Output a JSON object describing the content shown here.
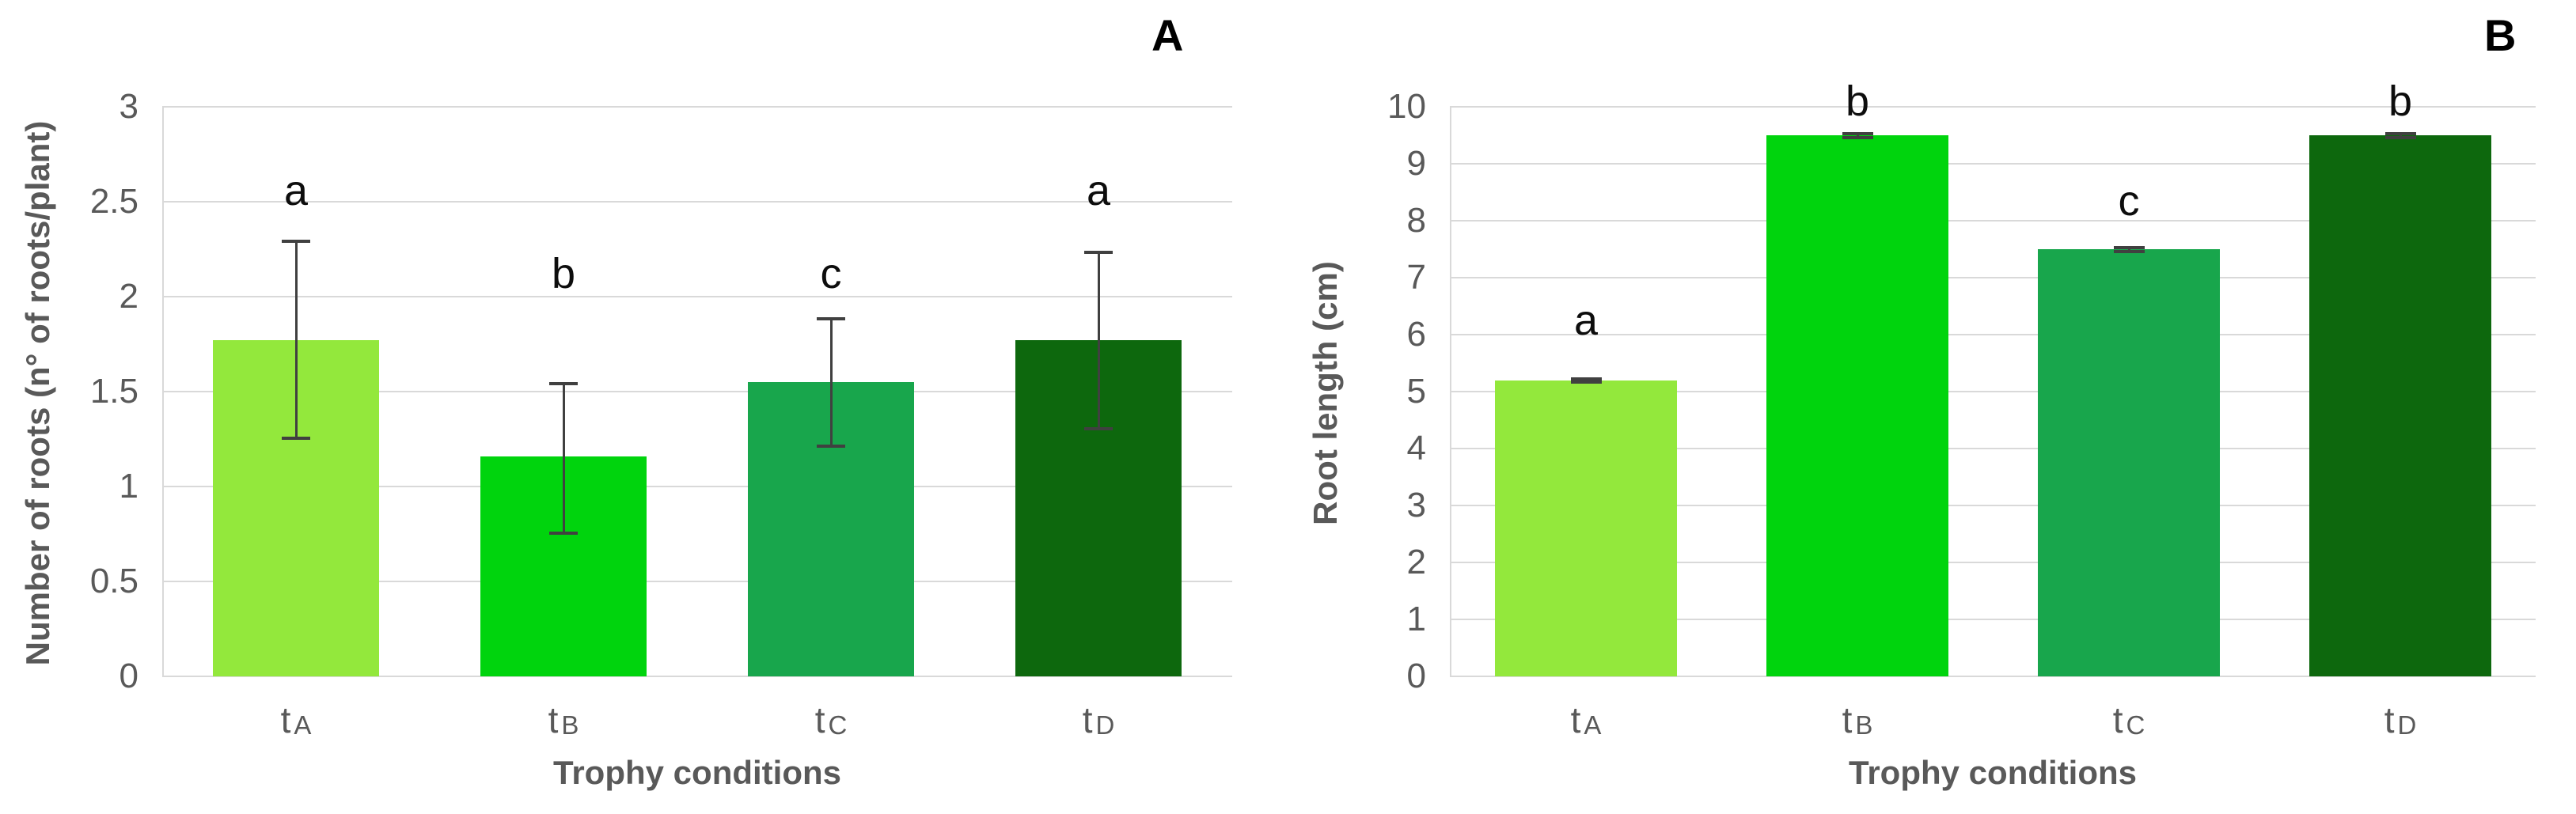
{
  "page": {
    "background": "#ffffff"
  },
  "chart_data": [
    {
      "type": "bar",
      "panel_label": "A",
      "ylabel": "Number of roots (n° of roots/plant)",
      "xlabel": "Trophy conditions",
      "categories": [
        "tA",
        "tB",
        "tC",
        "tD"
      ],
      "values": [
        1.77,
        1.16,
        1.55,
        1.77
      ],
      "error_low": [
        1.25,
        0.75,
        1.21,
        1.3
      ],
      "error_high": [
        2.3,
        1.55,
        1.89,
        2.24
      ],
      "sig_letters": [
        "a",
        "b",
        "c",
        "a"
      ],
      "sig_letter_y": [
        2.56,
        2.12,
        2.12,
        2.56
      ],
      "bar_colors": [
        "#93E83C",
        "#00D40D",
        "#18A64C",
        "#0D680D"
      ],
      "ylim": [
        0,
        3
      ],
      "yticks": [
        "0",
        "0.5",
        "1",
        "1.5",
        "2",
        "2.5",
        "3"
      ],
      "grid": true,
      "legend": "none",
      "gridline_color": "#D9D9D9",
      "axis_line_color": "#D9D9D9",
      "axis_text_color": "#595959",
      "error_bar_color": "#404040"
    },
    {
      "type": "bar",
      "panel_label": "B",
      "ylabel": "Root length (cm)",
      "xlabel": "Trophy conditions",
      "categories": [
        "tA",
        "tB",
        "tC",
        "tD"
      ],
      "values": [
        5.2,
        9.5,
        7.5,
        9.5
      ],
      "error_low": [
        5.15,
        9.45,
        7.45,
        9.45
      ],
      "error_high": [
        5.25,
        9.55,
        7.55,
        9.55
      ],
      "sig_letters": [
        "a",
        "b",
        "c",
        "b"
      ],
      "sig_letter_y": [
        6.25,
        10.1,
        8.35,
        10.1
      ],
      "bar_colors": [
        "#93E83C",
        "#00D40D",
        "#18A64C",
        "#0D680D"
      ],
      "ylim": [
        0,
        10
      ],
      "yticks": [
        "0",
        "1",
        "2",
        "3",
        "4",
        "5",
        "6",
        "7",
        "8",
        "9",
        "10"
      ],
      "grid": true,
      "legend": "none",
      "gridline_color": "#D9D9D9",
      "axis_line_color": "#D9D9D9",
      "axis_text_color": "#595959",
      "error_bar_color": "#404040"
    }
  ]
}
